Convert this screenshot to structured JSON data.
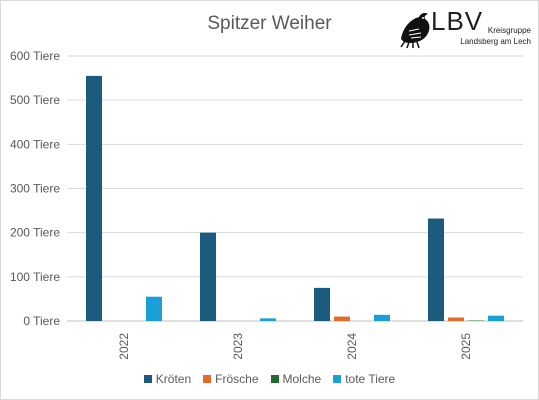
{
  "chart_data": {
    "type": "bar",
    "title": "Spitzer Weiher",
    "categories": [
      "2022",
      "2023",
      "2024",
      "2025"
    ],
    "series": [
      {
        "name": "Kröten",
        "values": [
          555,
          200,
          75,
          232
        ],
        "color": "#1a5b7e"
      },
      {
        "name": "Frösche",
        "values": [
          0,
          0,
          10,
          8
        ],
        "color": "#e56b2a"
      },
      {
        "name": "Molche",
        "values": [
          0,
          0,
          0,
          1
        ],
        "color": "#1e6b2a"
      },
      {
        "name": "tote Tiere",
        "values": [
          55,
          6,
          14,
          12
        ],
        "color": "#1a9fd8"
      }
    ],
    "ylim": [
      0,
      600
    ],
    "yticks": [
      "0 Tiere",
      "100 Tiere",
      "200 Tiere",
      "300 Tiere",
      "400 Tiere",
      "500 Tiere",
      "600 Tiere"
    ],
    "ytick_values": [
      0,
      100,
      200,
      300,
      400,
      500,
      600
    ],
    "grid": true,
    "legend_position": "bottom"
  },
  "logo": {
    "text": "LBV",
    "subtitle_line1": "Kreisgruppe",
    "subtitle_line2": "Landsberg am Lech"
  }
}
